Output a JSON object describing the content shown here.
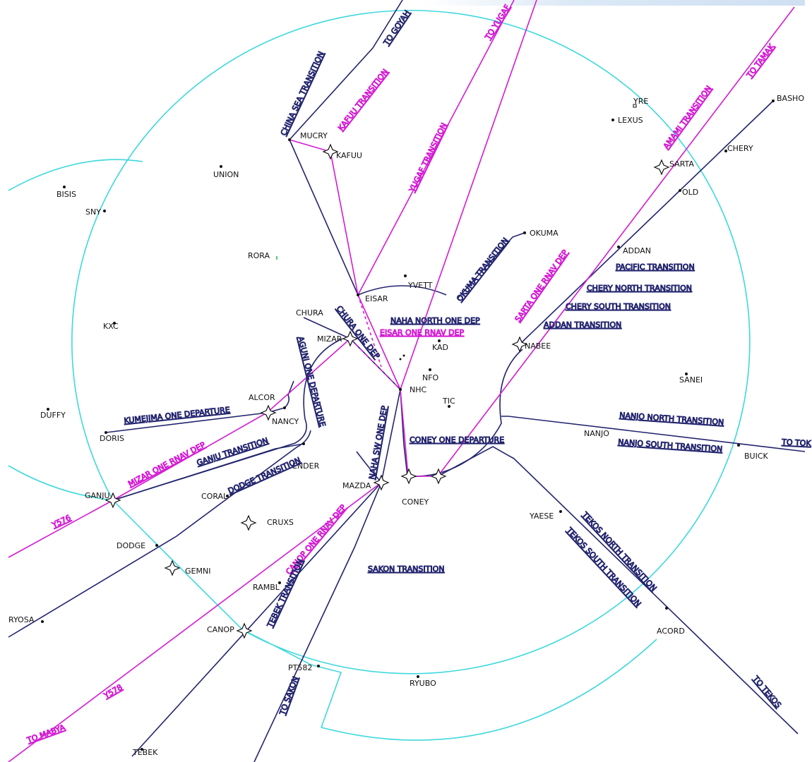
{
  "colors": {
    "navy": "#22246e",
    "magenta": "#d41bd4",
    "cyan": "#3fd8dc",
    "background": "#ffffff"
  },
  "fixes": {
    "basho": "BASHO",
    "chery": "CHERY",
    "sarta": "SARTA",
    "old": "OLD",
    "lexus": "LEXUS",
    "yre": "YRE",
    "mucry": "MUCRY",
    "kafuu": "KAFUU",
    "union": "UNION",
    "bisis": "BISIS",
    "sny": "SNY",
    "rora": "RORA",
    "okuma": "OKUMA",
    "yvett": "YVETT",
    "eisar": "EISAR",
    "addan": "ADDAN",
    "kxc": "KXC",
    "chura": "CHURA",
    "mizar": "MIZAR",
    "kad": "KAD",
    "nabee": "NABEE",
    "nfo": "NFO",
    "nhc": "NHC",
    "sanei": "SANEI",
    "tic": "TIC",
    "alcor": "ALCOR",
    "duffy": "DUFFY",
    "nancy": "NANCY",
    "doris": "DORIS",
    "nanjo": "NANJO",
    "buick": "BUICK",
    "ender": "ENDER",
    "mazda": "MAZDA",
    "coney": "CONEY",
    "ganju": "GANJU",
    "coral": "CORAL",
    "yaese": "YAESE",
    "cruxs": "CRUXS",
    "dodge": "DODGE",
    "gemni": "GEMNI",
    "rambl": "RAMBL",
    "ryosa": "RYOSA",
    "canop": "CANOP",
    "acord": "ACORD",
    "pt582": "PT582",
    "ryubo": "RYUBO",
    "tebek": "TEBEK"
  },
  "routes": {
    "to_goyah": "TO GOYAH",
    "to_yugaf": "TO YUGAF",
    "to_tamak": "TO TAMAK",
    "china_sea": "CHINA SEA TRANSITION",
    "kafuu": "KAFUU TRANSITION",
    "yugaf": "YUGAF TRANSITION",
    "amami": "AMAMI TRANSITION",
    "okuma": "OKUMA TRANSITION",
    "sarta_rnav": "SARTA ONE RNAV DEP",
    "pacific": "PACIFIC TRANSITION",
    "chery_north": "CHERY NORTH TRANSITION",
    "chery_south": "CHERY SOUTH TRANSITION",
    "addan": "ADDAN TRANSITION",
    "naha_north": "NAHA NORTH ONE DEP",
    "eisar_rnav": "EISAR ONE RNAV DEP",
    "chura_dep": "CHURA ONE DEP",
    "aguni_dep": "AGUNI ONE DEPARTURE",
    "kumejima": "KUMEJIMA ONE DEPARTURE",
    "mizar_rnav": "MIZAR ONE RNAV DEP",
    "ganju": "GANJU TRANSITION",
    "dodge": "DODGE TRANSITION",
    "naha_sw": "NAHA SW ONE DEP",
    "coney_dep": "CONEY ONE DEPARTURE",
    "nanjo_north": "NANJO NORTH TRANSITION",
    "nanjo_south": "NANJO SOUTH TRANSITION",
    "to_tok": "TO TOK",
    "y576": "Y576",
    "tekos_north": "TEKOS NORTH TRANSITION",
    "tekos_south": "TEKOS SOUTH TRANSITION",
    "canop_rnav": "CANOP ONE RNAV DEP",
    "tebek": "TEBEK TRANSITION",
    "sakon": "SAKON TRANSITION",
    "y578": "Y578",
    "to_sakon": "TO SAKON",
    "to_tekos": "TO TEKOS",
    "to_mabya": "TO MABYA"
  }
}
